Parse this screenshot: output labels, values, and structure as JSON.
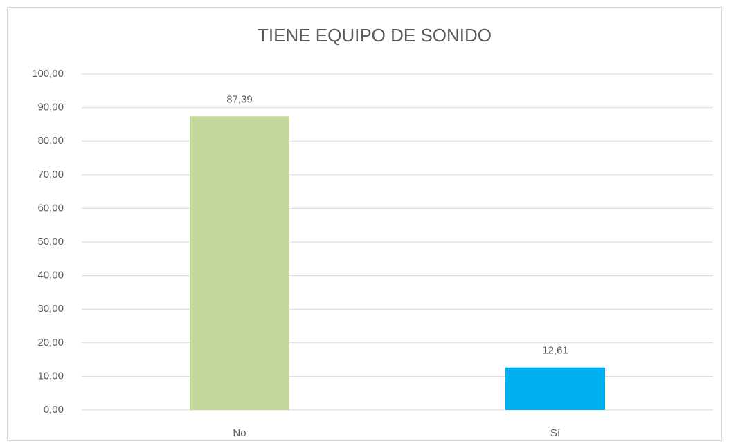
{
  "chart_data": {
    "type": "bar",
    "title": "TIENE EQUIPO DE SONIDO",
    "categories": [
      "No",
      "Sí"
    ],
    "values": [
      87.39,
      12.61
    ],
    "value_labels": [
      "87,39",
      "12,61"
    ],
    "colors": [
      "#c4d79b",
      "#00b0f0"
    ],
    "ylim": [
      0,
      100
    ],
    "yticks": [
      {
        "value": 0,
        "label": "0,00"
      },
      {
        "value": 10,
        "label": "10,00"
      },
      {
        "value": 20,
        "label": "20,00"
      },
      {
        "value": 30,
        "label": "30,00"
      },
      {
        "value": 40,
        "label": "40,00"
      },
      {
        "value": 50,
        "label": "50,00"
      },
      {
        "value": 60,
        "label": "60,00"
      },
      {
        "value": 70,
        "label": "70,00"
      },
      {
        "value": 80,
        "label": "80,00"
      },
      {
        "value": 90,
        "label": "90,00"
      },
      {
        "value": 100,
        "label": "100,00"
      }
    ],
    "grid": true
  }
}
